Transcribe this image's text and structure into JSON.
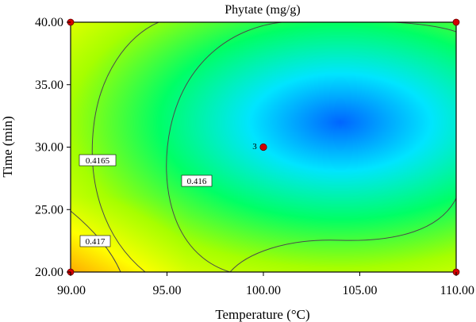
{
  "chart_data": {
    "type": "contour",
    "title": "Phytate (mg/g)",
    "xlabel": "Temperature (°C)",
    "ylabel": "Time (min)",
    "xlim": [
      90,
      110
    ],
    "ylim": [
      20,
      40
    ],
    "x_ticks": [
      "90.00",
      "95.00",
      "100.00",
      "105.00",
      "110.00"
    ],
    "y_ticks": [
      "20.00",
      "25.00",
      "30.00",
      "35.00",
      "40.00"
    ],
    "surface": {
      "description_of_trend": "minimum near x=104, y=32; increases toward low temperature and low time",
      "min_location": [
        104,
        32
      ],
      "colormap": [
        "#0066ff",
        "#00e5ff",
        "#00ff66",
        "#a6ff00",
        "#ffff00",
        "#ff9900",
        "#ff2200"
      ]
    },
    "contours": [
      {
        "level": 0.416,
        "label": "0.416"
      },
      {
        "level": 0.4165,
        "label": "0.4165"
      },
      {
        "level": 0.417,
        "label": "0.417"
      }
    ],
    "design_points": [
      {
        "x": 90,
        "y": 20
      },
      {
        "x": 90,
        "y": 40
      },
      {
        "x": 110,
        "y": 20
      },
      {
        "x": 110,
        "y": 40
      },
      {
        "x": 100,
        "y": 30,
        "count": 3
      }
    ],
    "center_point_label": "3"
  }
}
